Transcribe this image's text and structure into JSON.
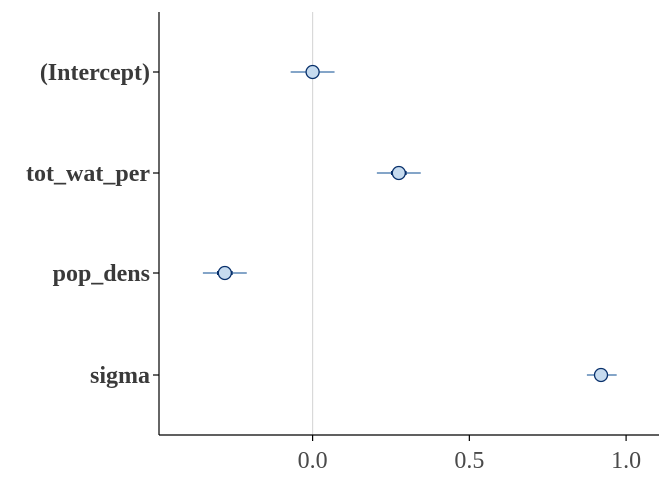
{
  "chart_data": {
    "type": "scatter",
    "subtype": "interval-plot",
    "title": "",
    "xlabel": "",
    "ylabel": "",
    "parameters": [
      "(Intercept)",
      "tot_wat_per",
      "pop_dens",
      "sigma"
    ],
    "estimates": [
      {
        "name": "(Intercept)",
        "median": 0.0,
        "inner": [
          -0.02,
          0.02
        ],
        "outer": [
          -0.07,
          0.07
        ]
      },
      {
        "name": "tot_wat_per",
        "median": 0.275,
        "inner": [
          0.25,
          0.3
        ],
        "outer": [
          0.205,
          0.345
        ]
      },
      {
        "name": "pop_dens",
        "median": -0.28,
        "inner": [
          -0.305,
          -0.255
        ],
        "outer": [
          -0.35,
          -0.21
        ]
      },
      {
        "name": "sigma",
        "median": 0.92,
        "inner": [
          0.905,
          0.935
        ],
        "outer": [
          0.875,
          0.97
        ]
      }
    ],
    "x_ticks": [
      "0.0",
      "0.5",
      "1.0"
    ],
    "x_tick_values": [
      0.0,
      0.5,
      1.0
    ],
    "xlim": [
      -0.49,
      1.105
    ],
    "reference_line": 0.0,
    "grid": false,
    "legend": "none",
    "colors": {
      "point_fill": "#c6dbef",
      "point_stroke": "#08306b",
      "inner_interval": "#08306b",
      "outer_interval": "#3a6fa8",
      "reference_line": "#d9d9d9",
      "axis": "#000000",
      "tick_text": "#3a3a3a"
    }
  }
}
